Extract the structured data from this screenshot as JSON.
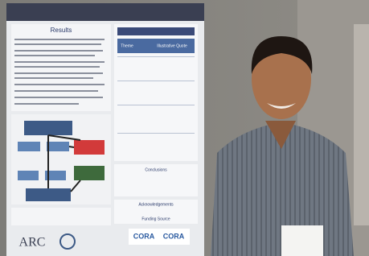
{
  "poster": {
    "heading": "Results",
    "table_columns": [
      "Theme",
      "Illustrative Quote"
    ],
    "sections": [
      "Conclusions",
      "Acknowledgements",
      "Funding Source"
    ],
    "logos": [
      "ARC",
      "CORA",
      "CORA"
    ]
  }
}
